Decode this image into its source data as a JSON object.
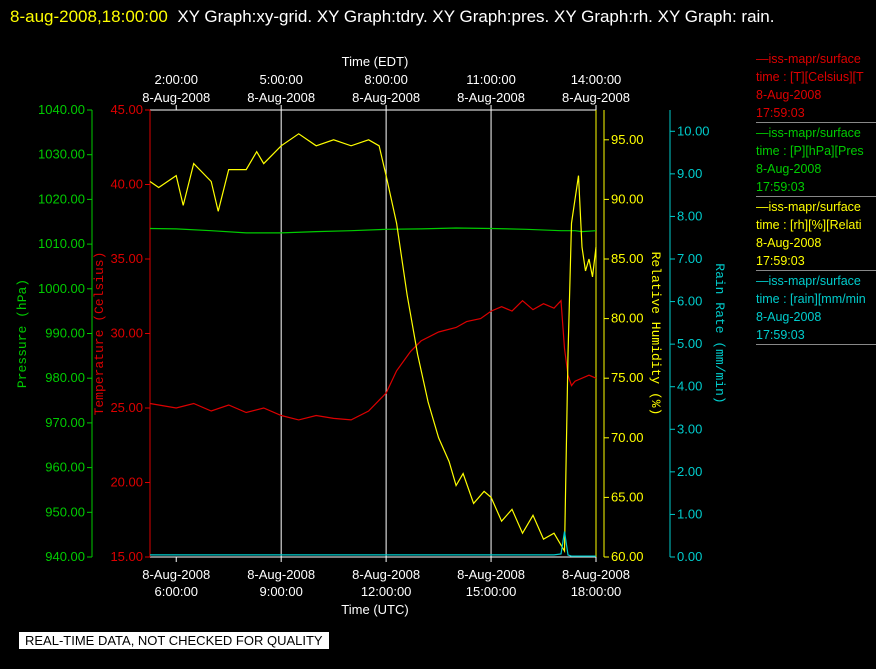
{
  "header": {
    "timestamp": "8-aug-2008,18:00:00",
    "title_text": "XY Graph:xy-grid.  XY Graph:tdry.  XY Graph:pres.  XY Graph:rh.  XY Graph: rain."
  },
  "colors": {
    "pressure": "#00cc00",
    "temperature": "#dd0000",
    "humidity": "#ffff00",
    "rain": "#00cccc",
    "grid": "#ffffff"
  },
  "legend": [
    {
      "line1": "iss-mapr/surface",
      "line2": "time : [T][Celsius][T",
      "date": "8-Aug-2008",
      "time": "17:59:03",
      "color": "#dd0000"
    },
    {
      "line1": "iss-mapr/surface",
      "line2": "time : [P][hPa][Pres",
      "date": "8-Aug-2008",
      "time": "17:59:03",
      "color": "#00cc00"
    },
    {
      "line1": "iss-mapr/surface",
      "line2": "time : [rh][%][Relati",
      "date": "8-Aug-2008",
      "time": "17:59:03",
      "color": "#ffff00"
    },
    {
      "line1": "iss-mapr/surface",
      "line2": "time : [rain][mm/min",
      "date": "8-Aug-2008",
      "time": "17:59:03",
      "color": "#00cccc"
    }
  ],
  "banner": "REAL-TIME DATA, NOT CHECKED FOR QUALITY",
  "chart_data": {
    "type": "line",
    "title": "",
    "x_top_label": "Time (EDT)",
    "x_bottom_label": "Time (UTC)",
    "xlim_utc_hours": [
      5.25,
      18.0
    ],
    "top_ticks": [
      {
        "hour": 6,
        "time": "2:00:00",
        "date": "8-Aug-2008"
      },
      {
        "hour": 9,
        "time": "5:00:00",
        "date": "8-Aug-2008"
      },
      {
        "hour": 12,
        "time": "8:00:00",
        "date": "8-Aug-2008"
      },
      {
        "hour": 15,
        "time": "11:00:00",
        "date": "8-Aug-2008"
      },
      {
        "hour": 18,
        "time": "14:00:00",
        "date": "8-Aug-2008"
      }
    ],
    "bottom_ticks": [
      {
        "hour": 6,
        "date": "8-Aug-2008",
        "time": "6:00:00"
      },
      {
        "hour": 9,
        "date": "8-Aug-2008",
        "time": "9:00:00"
      },
      {
        "hour": 12,
        "date": "8-Aug-2008",
        "time": "12:00:00"
      },
      {
        "hour": 15,
        "date": "8-Aug-2008",
        "time": "15:00:00"
      },
      {
        "hour": 18,
        "date": "8-Aug-2008",
        "time": "18:00:00"
      }
    ],
    "grid_hours": [
      9,
      12,
      15
    ],
    "axes": {
      "pressure": {
        "label": "Pressure (hPa)",
        "min": 940,
        "max": 1040,
        "ticks": [
          "940.00",
          "950.00",
          "960.00",
          "970.00",
          "980.00",
          "990.00",
          "1000.00",
          "1010.00",
          "1020.00",
          "1030.00",
          "1040.00"
        ]
      },
      "temperature": {
        "label": "Temperature (Celsius)",
        "min": 15,
        "max": 45,
        "ticks": [
          "15.00",
          "20.00",
          "25.00",
          "30.00",
          "35.00",
          "40.00",
          "45.00"
        ]
      },
      "humidity": {
        "label": "Relative Humidity (%)",
        "min": 60,
        "max": 97.5,
        "ticks": [
          "60.00",
          "65.00",
          "70.00",
          "75.00",
          "80.00",
          "85.00",
          "90.00",
          "95.00"
        ]
      },
      "rain": {
        "label": "Rain Rate (mm/min)",
        "min": 0,
        "max": 10.5,
        "ticks": [
          "0.00",
          "1.00",
          "2.00",
          "3.00",
          "4.00",
          "5.00",
          "6.00",
          "7.00",
          "8.00",
          "9.00",
          "10.00"
        ]
      }
    },
    "series": [
      {
        "axis": "pressure",
        "x": [
          5.25,
          6,
          7,
          8,
          9,
          10,
          11,
          12,
          13,
          14,
          15,
          16,
          17,
          17.4,
          17.6,
          18
        ],
        "y": [
          1013.5,
          1013.4,
          1013,
          1012.5,
          1012.5,
          1012.8,
          1013,
          1013.3,
          1013.4,
          1013.6,
          1013.5,
          1013.3,
          1013,
          1013,
          1012.8,
          1013
        ]
      },
      {
        "axis": "temperature",
        "x": [
          5.25,
          6,
          6.5,
          7,
          7.5,
          8,
          8.5,
          9,
          9.5,
          10,
          10.5,
          11,
          11.5,
          12,
          12.3,
          12.7,
          13,
          13.5,
          14,
          14.3,
          14.7,
          15,
          15.3,
          15.6,
          15.9,
          16.2,
          16.5,
          16.8,
          17,
          17.1,
          17.2,
          17.3,
          17.4,
          17.6,
          17.8,
          18
        ],
        "y": [
          25.3,
          25,
          25.3,
          24.8,
          25.2,
          24.7,
          25,
          24.5,
          24.2,
          24.5,
          24.3,
          24.2,
          24.8,
          26,
          27.5,
          28.8,
          29.5,
          30.1,
          30.4,
          30.8,
          31,
          31.5,
          31.8,
          31.5,
          32.2,
          31.6,
          32,
          31.7,
          32.2,
          29,
          27.2,
          26.5,
          26.8,
          27,
          27.2,
          27
        ]
      },
      {
        "axis": "humidity",
        "x": [
          5.25,
          5.5,
          6,
          6.2,
          6.5,
          7,
          7.2,
          7.5,
          8,
          8.3,
          8.5,
          9,
          9.5,
          10,
          10.5,
          11,
          11.5,
          11.8,
          12,
          12.3,
          12.6,
          12.9,
          13.2,
          13.5,
          13.8,
          14,
          14.2,
          14.5,
          14.8,
          15,
          15.3,
          15.6,
          15.9,
          16.2,
          16.5,
          16.8,
          17,
          17.1,
          17.2,
          17.3,
          17.5,
          17.6,
          17.7,
          17.8,
          17.9,
          18
        ],
        "y": [
          91.5,
          91,
          92,
          89.5,
          93,
          91.5,
          89,
          92.5,
          92.5,
          94,
          93,
          94.5,
          95.5,
          94.5,
          95,
          94.5,
          95,
          94.5,
          92,
          88,
          82,
          77,
          73,
          70,
          68,
          66,
          67,
          64.5,
          65.5,
          65,
          63,
          64,
          62,
          63.5,
          61.5,
          62,
          61,
          60.5,
          77,
          88,
          92,
          86,
          84,
          85,
          83.5,
          86
        ]
      },
      {
        "axis": "rain",
        "x": [
          5.25,
          16.8,
          17.0,
          17.1,
          17.2,
          17.3,
          18
        ],
        "y": [
          0.05,
          0.05,
          0.07,
          0.6,
          0.05,
          0.02,
          0.02
        ]
      }
    ]
  }
}
